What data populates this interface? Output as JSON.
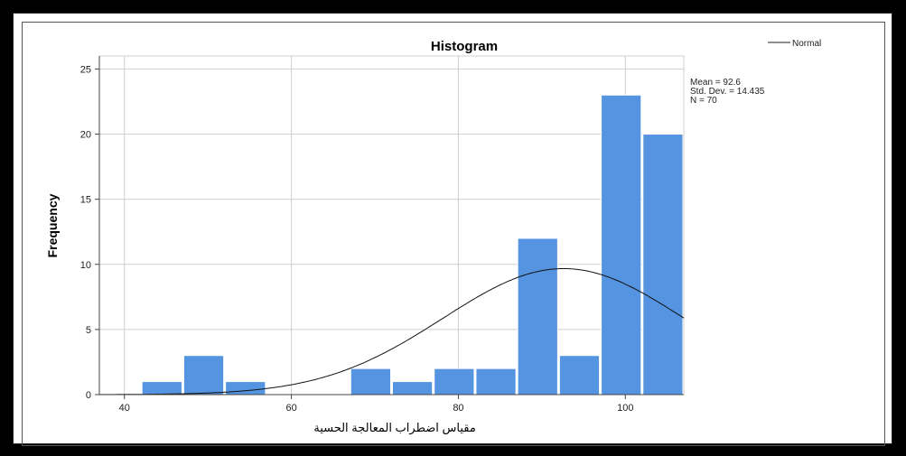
{
  "chart_data": {
    "type": "histogram",
    "title": "Histogram",
    "xlabel": "مقياس اضطراب المعالجة الحسية",
    "ylabel": "Frequency",
    "xlim": [
      37,
      107
    ],
    "ylim": [
      0,
      26
    ],
    "x_ticks": [
      40,
      60,
      80,
      100
    ],
    "y_ticks": [
      0,
      5,
      10,
      15,
      20,
      25
    ],
    "grid": "vertical and horizontal",
    "bar_color": "#5594e0",
    "bins": [
      {
        "start": 42,
        "end": 47,
        "count": 1
      },
      {
        "start": 47,
        "end": 52,
        "count": 3
      },
      {
        "start": 52,
        "end": 57,
        "count": 1
      },
      {
        "start": 57,
        "end": 62,
        "count": 0
      },
      {
        "start": 62,
        "end": 67,
        "count": 0
      },
      {
        "start": 67,
        "end": 72,
        "count": 2
      },
      {
        "start": 72,
        "end": 77,
        "count": 1
      },
      {
        "start": 77,
        "end": 82,
        "count": 2
      },
      {
        "start": 82,
        "end": 87,
        "count": 2
      },
      {
        "start": 87,
        "end": 92,
        "count": 12
      },
      {
        "start": 92,
        "end": 97,
        "count": 3
      },
      {
        "start": 97,
        "end": 102,
        "count": 23
      },
      {
        "start": 102,
        "end": 107,
        "count": 20
      }
    ],
    "normal_curve": {
      "name": "Normal",
      "mean": 92.6,
      "sd": 14.435,
      "n": 70,
      "bin_width": 5
    },
    "stats_text": [
      "Mean = 92.6",
      "Std. Dev. = 14.435",
      "N = 70"
    ],
    "legend": {
      "label": "Normal",
      "position": "top-right"
    }
  }
}
